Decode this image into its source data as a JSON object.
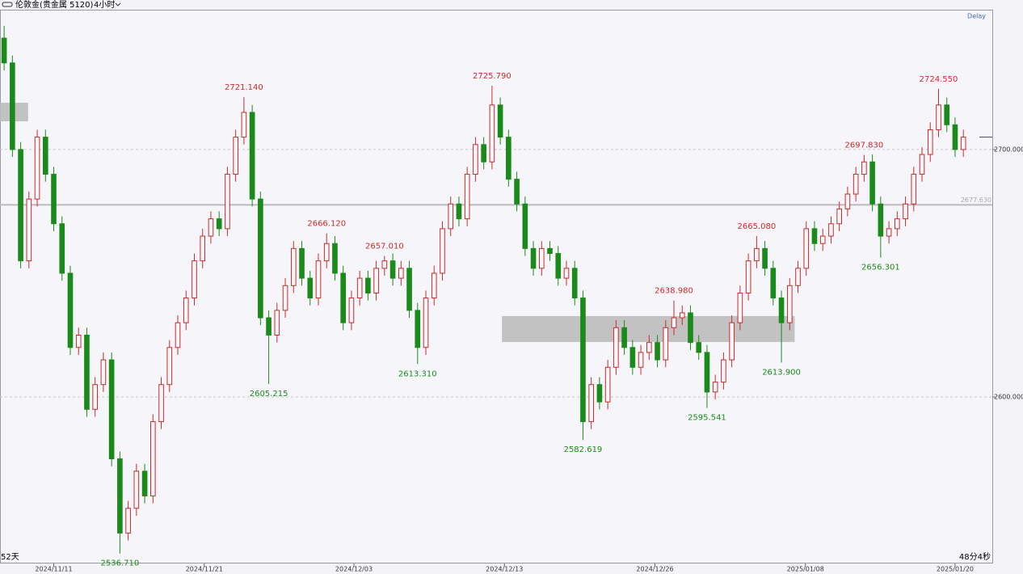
{
  "header": {
    "symbol": "伦敦金(贵金属 5120)",
    "period": "4小时",
    "delay": "Delay",
    "left_status": "52天",
    "right_status": "48分4秒"
  },
  "chart_data": {
    "type": "candlestick",
    "up_color": "#cc2a2a",
    "down_color": "#1a8a1a",
    "xlim": [
      -0.5,
      119.5
    ],
    "ylim": [
      2532.7,
      2756.5
    ],
    "yticks": [
      {
        "value": 2700,
        "label": "2700.000"
      },
      {
        "value": 2600,
        "label": "2600.000"
      }
    ],
    "grid": true,
    "xticks": [
      {
        "value": 6,
        "label": "2024/11/11"
      },
      {
        "value": 24.2,
        "label": "2024/11/21"
      },
      {
        "value": 42.3,
        "label": "2024/12/03"
      },
      {
        "value": 60.5,
        "label": "2024/12/13"
      },
      {
        "value": 78.7,
        "label": "2024/12/26"
      },
      {
        "value": 96.9,
        "label": "2025/01/08"
      },
      {
        "value": 115,
        "label": "2025/01/20"
      }
    ],
    "price_line": {
      "value": 2677.63,
      "label": "2677.630"
    },
    "zones": [
      {
        "x": [
          -0.5,
          2.9
        ],
        "y": [
          2711.4,
          2718.9
        ]
      },
      {
        "x": [
          60.2,
          95.6
        ],
        "y": [
          2622.2,
          2632.7
        ]
      }
    ],
    "open": [
      2745,
      2735,
      2700,
      2655,
      2680,
      2705,
      2690,
      2670,
      2650,
      2620,
      2625,
      2595,
      2605,
      2615,
      2575,
      2545,
      2555,
      2570,
      2560,
      2590,
      2605,
      2620,
      2630,
      2640,
      2655,
      2665,
      2672,
      2668,
      2690,
      2705,
      2715,
      2680,
      2632,
      2625,
      2635,
      2645,
      2660,
      2648,
      2640,
      2655,
      2662,
      2650,
      2630,
      2640,
      2648,
      2642,
      2652,
      2655,
      2648,
      2652,
      2635,
      2620,
      2640,
      2650,
      2668,
      2678,
      2672,
      2690,
      2702,
      2695,
      2718,
      2705,
      2688,
      2678,
      2660,
      2652,
      2660,
      2658,
      2648,
      2652,
      2640,
      2590,
      2605,
      2598,
      2612,
      2628,
      2620,
      2612,
      2618,
      2622,
      2615,
      2628,
      2632,
      2634,
      2622,
      2618,
      2602,
      2606,
      2615,
      2630,
      2642,
      2655,
      2660,
      2652,
      2640,
      2630,
      2645,
      2652,
      2668,
      2662,
      2665,
      2670,
      2676,
      2682,
      2690,
      2695,
      2678,
      2665,
      2668,
      2672,
      2678,
      2690,
      2698,
      2708,
      2718,
      2710,
      2700
    ],
    "high": [
      2750,
      2738,
      2703,
      2683,
      2708,
      2708,
      2693,
      2673,
      2653,
      2628,
      2628,
      2608,
      2618,
      2618,
      2578,
      2558,
      2573,
      2573,
      2593,
      2608,
      2623,
      2633,
      2643,
      2658,
      2668,
      2675,
      2675,
      2693,
      2708,
      2721.14,
      2718,
      2683,
      2635,
      2638,
      2648,
      2663,
      2663,
      2651,
      2658,
      2666.12,
      2665,
      2653,
      2643,
      2651,
      2651,
      2655,
      2657.01,
      2658,
      2655,
      2655,
      2638,
      2643,
      2653,
      2671,
      2681,
      2681,
      2693,
      2705,
      2705,
      2725.79,
      2721,
      2708,
      2691,
      2681,
      2663,
      2663,
      2663,
      2661,
      2655,
      2655,
      2643,
      2608,
      2608,
      2615,
      2631,
      2631,
      2623,
      2621,
      2625,
      2625,
      2631,
      2638.98,
      2637,
      2637,
      2625,
      2621,
      2609,
      2618,
      2633,
      2645,
      2658,
      2665.08,
      2663,
      2655,
      2643,
      2648,
      2655,
      2671,
      2671,
      2668,
      2673,
      2679,
      2685,
      2693,
      2697.83,
      2698,
      2681,
      2671,
      2675,
      2681,
      2693,
      2701,
      2711,
      2724.55,
      2721,
      2713,
      2708
    ],
    "low": [
      2732,
      2697,
      2652,
      2652,
      2677,
      2687,
      2667,
      2647,
      2617,
      2617,
      2592,
      2592,
      2602,
      2572,
      2536.71,
      2542,
      2552,
      2557,
      2557,
      2587,
      2602,
      2617,
      2627,
      2637,
      2652,
      2662,
      2665,
      2665,
      2687,
      2702,
      2677,
      2629,
      2605.215,
      2622,
      2632,
      2642,
      2645,
      2637,
      2637,
      2652,
      2647,
      2627,
      2627,
      2637,
      2639,
      2639,
      2649,
      2645,
      2645,
      2632,
      2613.31,
      2617,
      2637,
      2647,
      2665,
      2669,
      2669,
      2687,
      2692,
      2692,
      2702,
      2685,
      2675,
      2657,
      2649,
      2649,
      2655,
      2645,
      2645,
      2637,
      2582.619,
      2587,
      2595,
      2595,
      2609,
      2617,
      2609,
      2609,
      2615,
      2612,
      2612,
      2625,
      2629,
      2619,
      2615,
      2595.541,
      2599,
      2603,
      2612,
      2627,
      2639,
      2652,
      2649,
      2637,
      2613.9,
      2627,
      2642,
      2649,
      2659,
      2659,
      2662,
      2667,
      2673,
      2679,
      2687,
      2675,
      2656.301,
      2662,
      2665,
      2669,
      2675,
      2687,
      2695,
      2705,
      2707,
      2697,
      2697
    ],
    "close": [
      2735,
      2700,
      2655,
      2680,
      2705,
      2690,
      2670,
      2650,
      2620,
      2625,
      2595,
      2605,
      2615,
      2575,
      2545,
      2555,
      2570,
      2560,
      2590,
      2605,
      2620,
      2630,
      2640,
      2655,
      2665,
      2672,
      2668,
      2690,
      2705,
      2715,
      2680,
      2632,
      2625,
      2635,
      2645,
      2660,
      2648,
      2640,
      2655,
      2662,
      2650,
      2630,
      2640,
      2648,
      2642,
      2652,
      2655,
      2648,
      2652,
      2635,
      2620,
      2640,
      2650,
      2668,
      2678,
      2672,
      2690,
      2702,
      2695,
      2718,
      2705,
      2688,
      2678,
      2660,
      2652,
      2660,
      2658,
      2648,
      2652,
      2640,
      2590,
      2605,
      2598,
      2612,
      2628,
      2620,
      2612,
      2618,
      2622,
      2615,
      2628,
      2632,
      2634,
      2622,
      2618,
      2602,
      2606,
      2615,
      2630,
      2642,
      2655,
      2660,
      2652,
      2640,
      2630,
      2645,
      2652,
      2668,
      2662,
      2665,
      2670,
      2676,
      2682,
      2690,
      2695,
      2678,
      2665,
      2668,
      2672,
      2678,
      2690,
      2698,
      2708,
      2718,
      2710,
      2700,
      2705
    ],
    "annotations": [
      {
        "x": 29,
        "value": 2721.14,
        "label": "2721.140",
        "color": "#cc2a2a"
      },
      {
        "x": 14,
        "value": 2536.71,
        "label": "2536.710",
        "color": "#1a8a1a"
      },
      {
        "x": 32,
        "value": 2605.215,
        "label": "2605.215",
        "color": "#1a8a1a"
      },
      {
        "x": 39,
        "value": 2666.12,
        "label": "2666.120",
        "color": "#cc2a2a"
      },
      {
        "x": 46,
        "value": 2657.01,
        "label": "2657.010",
        "color": "#cc2a2a"
      },
      {
        "x": 50,
        "value": 2613.31,
        "label": "2613.310",
        "color": "#1a8a1a"
      },
      {
        "x": 59,
        "value": 2725.79,
        "label": "2725.790",
        "color": "#cc2a2a"
      },
      {
        "x": 70,
        "value": 2582.619,
        "label": "2582.619",
        "color": "#1a8a1a"
      },
      {
        "x": 81,
        "value": 2638.98,
        "label": "2638.980",
        "color": "#cc2a2a"
      },
      {
        "x": 85,
        "value": 2595.541,
        "label": "2595.541",
        "color": "#1a8a1a"
      },
      {
        "x": 91,
        "value": 2665.08,
        "label": "2665.080",
        "color": "#cc2a2a"
      },
      {
        "x": 94,
        "value": 2613.9,
        "label": "2613.900",
        "color": "#1a8a1a"
      },
      {
        "x": 104,
        "value": 2697.83,
        "label": "2697.830",
        "color": "#cc2a2a"
      },
      {
        "x": 106,
        "value": 2656.301,
        "label": "2656.301",
        "color": "#1a8a1a"
      },
      {
        "x": 113,
        "value": 2724.55,
        "label": "2724.550",
        "color": "#cc2a2a"
      }
    ]
  }
}
